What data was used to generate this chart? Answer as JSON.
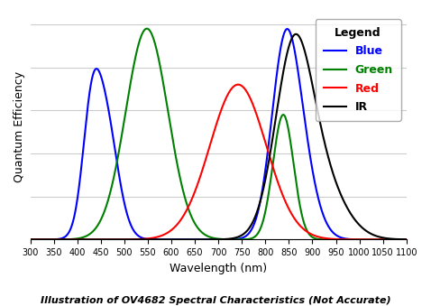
{
  "title": "Illustration of OV4682 Spectral Characteristics (Not Accurate)",
  "xlabel": "Wavelength (nm)",
  "ylabel": "Quantum Efficiency",
  "xlim": [
    300,
    1100
  ],
  "ylim": [
    0,
    1.05
  ],
  "xticks": [
    300,
    350,
    400,
    450,
    500,
    550,
    600,
    650,
    700,
    750,
    800,
    850,
    900,
    950,
    1000,
    1050,
    1100
  ],
  "legend_title": "Legend",
  "legend_entries": [
    "Blue",
    "Green",
    "Red",
    "IR"
  ],
  "legend_colors": [
    "blue",
    "green",
    "red",
    "black"
  ],
  "background_color": "#ffffff",
  "grid_color": "#cccccc"
}
